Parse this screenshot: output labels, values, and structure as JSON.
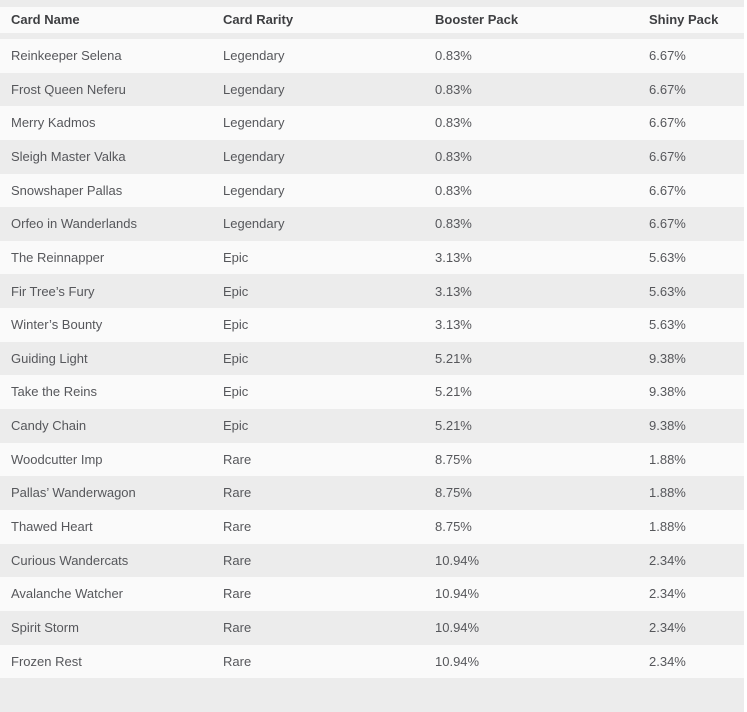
{
  "page": {
    "background_color": "#ffffff",
    "stripe_row_color": "#ececec",
    "plain_row_color": "#fafafa",
    "header_text_color": "#3e3f42",
    "body_text_color": "#56575b"
  },
  "chart_data": {
    "type": "table",
    "columns": [
      "Card Name",
      "Card Rarity",
      "Booster Pack",
      "Shiny Pack"
    ],
    "rows": [
      [
        "Reinkeeper Selena",
        "Legendary",
        "0.83%",
        "6.67%"
      ],
      [
        "Frost Queen Neferu",
        "Legendary",
        "0.83%",
        "6.67%"
      ],
      [
        "Merry Kadmos",
        "Legendary",
        "0.83%",
        "6.67%"
      ],
      [
        "Sleigh Master Valka",
        "Legendary",
        "0.83%",
        "6.67%"
      ],
      [
        "Snowshaper Pallas",
        "Legendary",
        "0.83%",
        "6.67%"
      ],
      [
        "Orfeo in Wanderlands",
        "Legendary",
        "0.83%",
        "6.67%"
      ],
      [
        "The Reinnapper",
        "Epic",
        "3.13%",
        "5.63%"
      ],
      [
        "Fir Tree’s Fury",
        "Epic",
        "3.13%",
        "5.63%"
      ],
      [
        "Winter’s Bounty",
        "Epic",
        "3.13%",
        "5.63%"
      ],
      [
        "Guiding Light",
        "Epic",
        "5.21%",
        "9.38%"
      ],
      [
        "Take the Reins",
        "Epic",
        "5.21%",
        "9.38%"
      ],
      [
        "Candy Chain",
        "Epic",
        "5.21%",
        "9.38%"
      ],
      [
        "Woodcutter Imp",
        "Rare",
        "8.75%",
        "1.88%"
      ],
      [
        "Pallas’ Wanderwagon",
        "Rare",
        "8.75%",
        "1.88%"
      ],
      [
        "Thawed Heart",
        "Rare",
        "8.75%",
        "1.88%"
      ],
      [
        "Curious Wandercats",
        "Rare",
        "10.94%",
        "2.34%"
      ],
      [
        "Avalanche Watcher",
        "Rare",
        "10.94%",
        "2.34%"
      ],
      [
        "Spirit Storm",
        "Rare",
        "10.94%",
        "2.34%"
      ],
      [
        "Frozen Rest",
        "Rare",
        "10.94%",
        "2.34%"
      ]
    ],
    "layout_hints": {
      "striped_rows": true,
      "first_data_row_background": "plain",
      "grid_lines": false,
      "partial_row_clipped_at_bottom": true
    }
  }
}
